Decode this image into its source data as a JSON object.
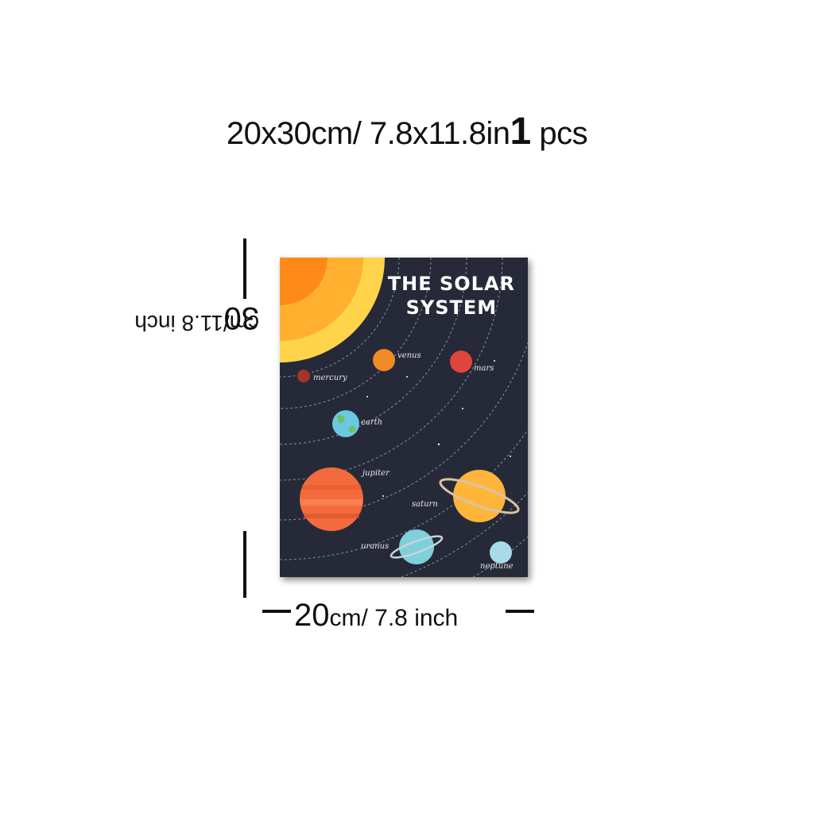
{
  "headline": {
    "size_cm_num": "20",
    "size_cm_rest": "x30cm/ 7.8x11.8in",
    "qty_num": "1",
    "qty_unit": "pcs"
  },
  "height_label": {
    "num": "30",
    "rest": "cm/11.8 inch"
  },
  "width_label": {
    "num": "20",
    "rest": "cm/ 7.8 inch"
  },
  "poster": {
    "title_line1": "THE SOLAR",
    "title_line2": "SYSTEM",
    "background_color": "#262a38",
    "planets": {
      "mercury": "mercury",
      "venus": "venus",
      "mars": "mars",
      "earth": "earth",
      "jupiter": "jupiter",
      "saturn": "saturn",
      "uranus": "uranus",
      "neptune": "neptune"
    }
  }
}
